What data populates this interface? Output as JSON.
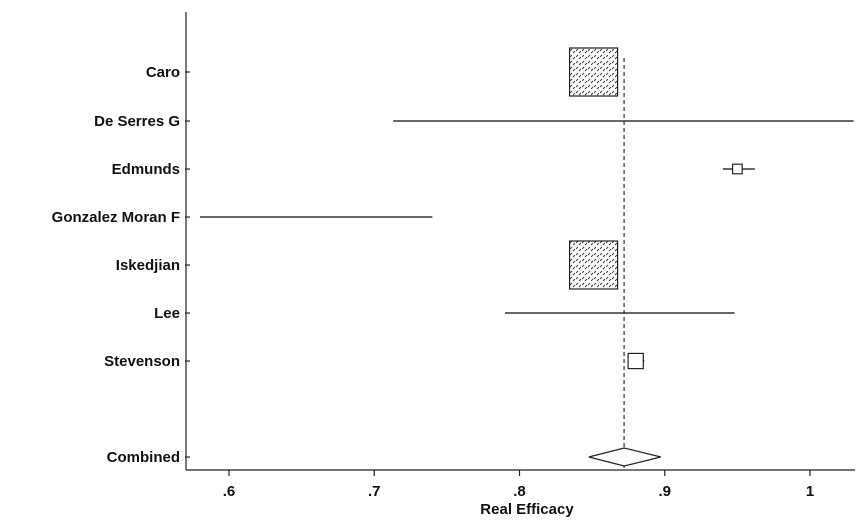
{
  "chart_data": {
    "type": "forest",
    "xlabel": "Real Efficacy",
    "xlim": [
      0.573,
      1.03
    ],
    "x_ticks": [
      {
        "value": 0.6,
        "label": ".6"
      },
      {
        "value": 0.7,
        "label": ".7"
      },
      {
        "value": 0.8,
        "label": ".8"
      },
      {
        "value": 0.9,
        "label": ".9"
      },
      {
        "value": 1.0,
        "label": "1"
      }
    ],
    "pooled_reference": 0.872,
    "studies": [
      {
        "name": "Caro",
        "estimate": 0.851,
        "lower": 0.851,
        "upper": 0.851,
        "weight": 1.0
      },
      {
        "name": "De Serres G",
        "estimate": 0.872,
        "lower": 0.713,
        "upper": 1.03,
        "weight": 0.0
      },
      {
        "name": "Edmunds",
        "estimate": 0.95,
        "lower": 0.94,
        "upper": 0.962,
        "weight": 0.04
      },
      {
        "name": "Gonzalez Moran F",
        "estimate": 0.66,
        "lower": 0.58,
        "upper": 0.74,
        "weight": 0.0
      },
      {
        "name": "Iskedjian",
        "estimate": 0.851,
        "lower": 0.851,
        "upper": 0.851,
        "weight": 1.0
      },
      {
        "name": "Lee",
        "estimate": 0.87,
        "lower": 0.79,
        "upper": 0.948,
        "weight": 0.0
      },
      {
        "name": "Stevenson",
        "estimate": 0.88,
        "lower": 0.876,
        "upper": 0.886,
        "weight": 0.1
      }
    ],
    "combined": {
      "name": "Combined",
      "estimate": 0.872,
      "lower": 0.856,
      "upper": 0.889
    }
  }
}
